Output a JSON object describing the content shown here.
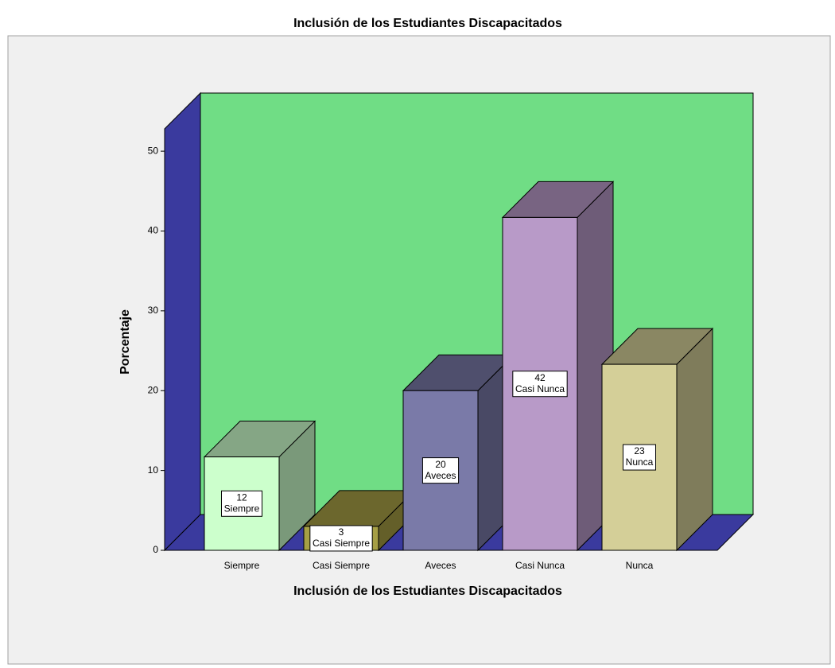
{
  "chart_data": {
    "type": "bar3d",
    "title": "Inclusión de los Estudiantes Discapacitados",
    "x_label": "Inclusión de los Estudiantes Discapacitados",
    "y_label": "Porcentaje",
    "categories": [
      "Siempre",
      "Casi Siempre",
      "Aveces",
      "Casi Nunca",
      "Nunca"
    ],
    "values": [
      11.7,
      3,
      20,
      41.7,
      23.3
    ],
    "value_labels": [
      "12",
      "3",
      "20",
      "42",
      "23"
    ],
    "colors": [
      "#ccffcc",
      "#a69f45",
      "#7a7aa8",
      "#b89ac8",
      "#d4cf98"
    ],
    "wall_color": "#70dd85",
    "side_wall_color": "#3a3a9e",
    "ylim": [
      0,
      52.8
    ],
    "yticks": [
      0,
      10,
      20,
      30,
      40,
      50
    ]
  }
}
